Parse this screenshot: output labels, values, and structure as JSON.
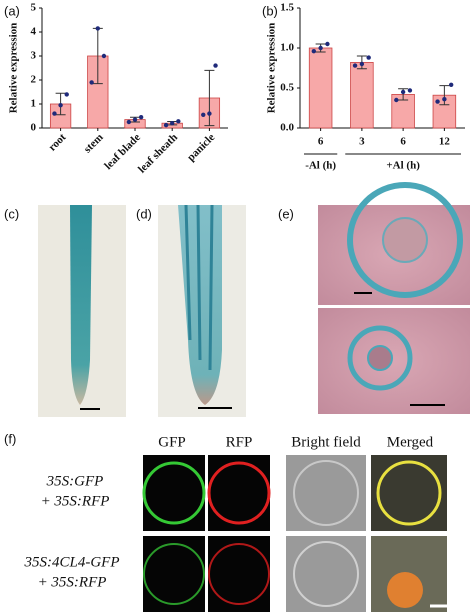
{
  "chart_data": [
    {
      "type": "bar",
      "ylabel": "Relative expression",
      "color": "#f7a8a8",
      "categories": [
        "root",
        "stem",
        "leaf blade",
        "leaf sheath",
        "panicle"
      ],
      "values": [
        1.0,
        3.0,
        0.35,
        0.2,
        1.25
      ],
      "errors": [
        0.45,
        1.15,
        0.1,
        0.07,
        1.15
      ],
      "points": [
        [
          0.6,
          0.95,
          1.4
        ],
        [
          1.9,
          4.15,
          3.0
        ],
        [
          0.25,
          0.35,
          0.45
        ],
        [
          0.12,
          0.2,
          0.28
        ],
        [
          0.55,
          0.6,
          2.6
        ]
      ],
      "point_color": "#1f2a7a",
      "ylim": [
        0,
        5
      ],
      "yticks": [
        0,
        1,
        2,
        3,
        4,
        5
      ]
    },
    {
      "type": "bar",
      "ylabel": "Relative expression",
      "color": "#f7a8a8",
      "categories": [
        "6",
        "3",
        "6",
        "12"
      ],
      "groups": [
        {
          "label": "-Al (h)",
          "size": 1
        },
        {
          "label": "+Al (h)",
          "size": 3
        }
      ],
      "values": [
        1.0,
        0.82,
        0.42,
        0.41
      ],
      "errors": [
        0.05,
        0.08,
        0.07,
        0.12
      ],
      "points": [
        [
          0.96,
          1.0,
          1.05
        ],
        [
          0.78,
          0.8,
          0.88
        ],
        [
          0.35,
          0.45,
          0.47
        ],
        [
          0.33,
          0.36,
          0.54
        ]
      ],
      "point_color": "#1f2a7a",
      "ylim": [
        0,
        1.5
      ],
      "yticks": [
        {
          "value": 0,
          "label": "0.0"
        },
        0.5,
        {
          "value": 1,
          "label": "1.0"
        },
        1.5
      ]
    }
  ],
  "panel_labels": [
    "(a)",
    "(b)",
    "(c)",
    "(d)",
    "(e)",
    "(f)"
  ],
  "panel_f": {
    "columns": [
      "GFP",
      "RFP",
      "Bright field",
      "Merged"
    ],
    "rows": [
      [
        "35S:GFP",
        "+ 35S:RFP"
      ],
      [
        "35S:4CL4-GFP",
        "+ 35S:RFP"
      ]
    ]
  }
}
